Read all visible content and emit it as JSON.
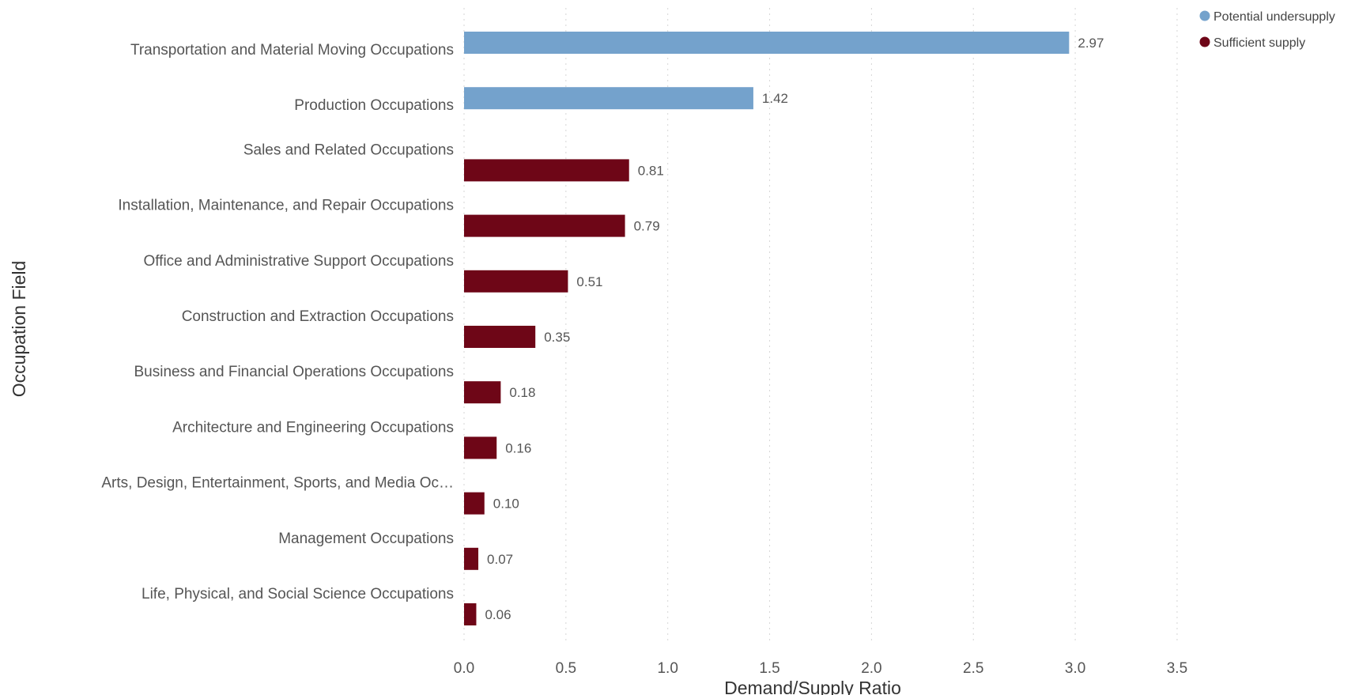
{
  "chart_data": {
    "type": "bar",
    "orientation": "horizontal",
    "xlabel": "Demand/Supply Ratio",
    "ylabel": "Occupation Field",
    "xlim": [
      0,
      3.5
    ],
    "xticks": [
      "0.0",
      "0.5",
      "1.0",
      "1.5",
      "2.0",
      "2.5",
      "3.0",
      "3.5"
    ],
    "grid": "vertical dotted",
    "legend_placement": "top-right",
    "legend": [
      {
        "name": "Potential undersupply",
        "color": "#74a2cc"
      },
      {
        "name": "Sufficient supply",
        "color": "#6e0617"
      }
    ],
    "categories": [
      "Transportation and Material Moving Occupations",
      "Production Occupations",
      "Sales and Related Occupations",
      "Installation, Maintenance, and Repair Occupations",
      "Office and Administrative Support Occupations",
      "Construction and Extraction Occupations",
      "Business and Financial Operations Occupations",
      "Architecture and Engineering Occupations",
      "Arts, Design, Entertainment, Sports, and Media Oc…",
      "Management Occupations",
      "Life, Physical, and Social Science Occupations"
    ],
    "values": [
      2.97,
      1.42,
      0.81,
      0.79,
      0.51,
      0.35,
      0.18,
      0.16,
      0.1,
      0.07,
      0.06
    ],
    "value_labels": [
      "2.97",
      "1.42",
      "0.81",
      "0.79",
      "0.51",
      "0.35",
      "0.18",
      "0.16",
      "0.10",
      "0.07",
      "0.06"
    ],
    "groups": [
      "Potential undersupply",
      "Potential undersupply",
      "Sufficient supply",
      "Sufficient supply",
      "Sufficient supply",
      "Sufficient supply",
      "Sufficient supply",
      "Sufficient supply",
      "Sufficient supply",
      "Sufficient supply",
      "Sufficient supply"
    ]
  }
}
